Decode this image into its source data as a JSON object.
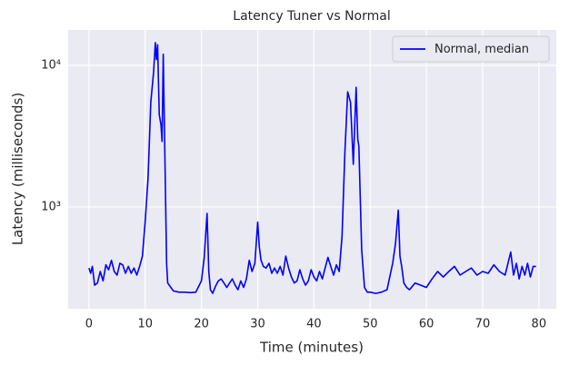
{
  "chart_data": {
    "type": "line",
    "title": "Latency Tuner vs Normal",
    "xlabel": "Time (minutes)",
    "ylabel": "Latency (milliseconds)",
    "yscale": "log",
    "grid": true,
    "legend": "upper right",
    "xlim": [
      -3.7,
      83.1
    ],
    "ylim": [
      191,
      17800
    ],
    "xticks": [
      0,
      10,
      20,
      30,
      40,
      50,
      60,
      70,
      80
    ],
    "yticks": [
      {
        "value": 1000,
        "label": "10³"
      },
      {
        "value": 10000,
        "label": "10⁴"
      }
    ],
    "x": [
      0,
      0.3,
      0.6,
      1,
      1.5,
      2,
      2.5,
      3,
      3.5,
      4,
      4.5,
      5,
      5.5,
      6,
      6.5,
      7,
      7.5,
      8,
      8.5,
      9,
      9.5,
      10,
      10.5,
      11,
      11.5,
      11.8,
      12,
      12.2,
      12.5,
      12.8,
      13,
      13.2,
      13.5,
      13.8,
      14,
      15,
      16,
      17,
      18,
      19,
      20,
      20.5,
      21,
      21.3,
      21.6,
      22,
      22.5,
      23,
      23.5,
      24,
      24.5,
      25,
      25.5,
      26,
      26.5,
      27,
      27.5,
      28,
      28.5,
      29,
      29.5,
      30,
      30.3,
      30.6,
      31,
      31.5,
      32,
      32.5,
      33,
      33.5,
      34,
      34.5,
      35,
      35.5,
      36,
      36.5,
      37,
      37.5,
      38,
      38.5,
      39,
      39.5,
      40,
      40.5,
      41,
      41.5,
      42,
      42.5,
      43,
      43.5,
      44,
      44.5,
      45,
      45.5,
      46,
      46.5,
      47,
      47.5,
      47.8,
      48,
      48.5,
      49,
      49.5,
      50,
      51,
      52,
      53,
      54,
      54.5,
      55,
      55.3,
      55.6,
      56,
      56.5,
      57,
      58,
      59,
      60,
      61,
      62,
      63,
      64,
      65,
      66,
      67,
      68,
      69,
      70,
      71,
      72,
      73,
      74,
      75,
      75.5,
      76,
      76.5,
      77,
      77.5,
      78,
      78.5,
      79,
      79.5
    ],
    "series": [
      {
        "name": "Normal, median",
        "color": "#0000ff",
        "values": [
          370,
          340,
          380,
          280,
          290,
          350,
          300,
          390,
          360,
          420,
          350,
          330,
          400,
          390,
          340,
          380,
          340,
          370,
          330,
          380,
          450,
          800,
          1600,
          5500,
          9000,
          14500,
          11000,
          14000,
          4500,
          3800,
          2900,
          12000,
          2300,
          400,
          290,
          255,
          250,
          250,
          248,
          250,
          300,
          440,
          900,
          350,
          260,
          245,
          275,
          300,
          310,
          290,
          270,
          290,
          310,
          280,
          260,
          300,
          270,
          310,
          420,
          350,
          400,
          780,
          520,
          420,
          380,
          370,
          400,
          340,
          370,
          340,
          380,
          330,
          450,
          370,
          320,
          290,
          300,
          360,
          310,
          280,
          300,
          360,
          320,
          300,
          350,
          310,
          370,
          440,
          380,
          330,
          390,
          350,
          620,
          2400,
          6500,
          5500,
          2000,
          7000,
          3000,
          2700,
          500,
          270,
          250,
          250,
          245,
          250,
          260,
          400,
          550,
          950,
          450,
          380,
          290,
          270,
          260,
          290,
          280,
          270,
          310,
          350,
          320,
          350,
          380,
          330,
          350,
          370,
          330,
          350,
          340,
          390,
          350,
          330,
          480,
          330,
          400,
          310,
          380,
          330,
          400,
          320,
          380,
          380
        ]
      }
    ]
  }
}
